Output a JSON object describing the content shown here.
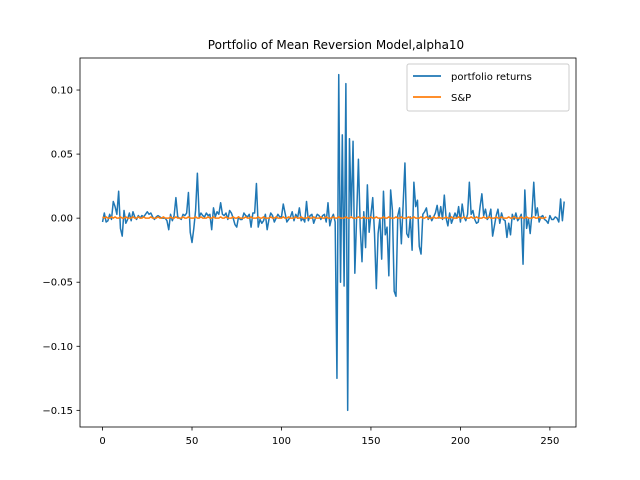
{
  "chart_data": {
    "type": "line",
    "title": "Portfolio of Mean Reversion Model,alpha10",
    "xlabel": "",
    "ylabel": "",
    "xlim": [
      -12.6,
      264.6
    ],
    "ylim": [
      -0.163,
      0.125
    ],
    "xticks": [
      0,
      50,
      100,
      150,
      200,
      250
    ],
    "yticks": [
      0.1,
      0.05,
      0.0,
      -0.05,
      -0.1,
      -0.15
    ],
    "ytick_labels": [
      "0.10",
      "0.05",
      "0.00",
      "−0.05",
      "−0.10",
      "−0.15"
    ],
    "grid": false,
    "legend_location": "upper right",
    "series": [
      {
        "name": "portfolio returns",
        "color": "#1f77b4",
        "x_start": 0,
        "x_step": 1,
        "values": [
          -0.003,
          0.004,
          -0.003,
          -0.002,
          0.003,
          -0.001,
          0.013,
          0.009,
          0.003,
          0.021,
          -0.008,
          -0.014,
          0.006,
          -0.004,
          -0.001,
          0.004,
          -0.002,
          0.005,
          0.001,
          -0.001,
          0.002,
          0.0,
          0.002,
          0.001,
          0.003,
          0.005,
          0.003,
          0.004,
          0.001,
          -0.001,
          0.001,
          0.002,
          0.001,
          0.0,
          0.0,
          0.0,
          -0.002,
          -0.009,
          0.003,
          -0.002,
          0.002,
          0.016,
          0.001,
          0.0,
          -0.001,
          0.003,
          0.002,
          0.004,
          0.02,
          -0.011,
          -0.019,
          -0.008,
          0.006,
          0.035,
          0.001,
          0.004,
          0.002,
          0.001,
          0.004,
          0.002,
          0.003,
          -0.009,
          0.008,
          0.001,
          0.005,
          0.003,
          0.012,
          0.003,
          0.002,
          0.004,
          -0.001,
          0.006,
          0.004,
          0.0,
          -0.005,
          -0.007,
          0.001,
          -0.001,
          -0.001,
          0.004,
          0.002,
          0.001,
          0.003,
          -0.007,
          0.004,
          0.004,
          0.027,
          -0.007,
          -0.001,
          -0.004,
          -0.002,
          0.003,
          -0.009,
          -0.001,
          0.004,
          0.002,
          -0.003,
          0.0,
          0.003,
          0.001,
          0.001,
          0.011,
          0.004,
          -0.003,
          -0.001,
          0.001,
          0.005,
          -0.002,
          0.003,
          0.0,
          0.008,
          -0.002,
          0.0,
          -0.003,
          0.013,
          -0.002,
          0.002,
          0.003,
          -0.004,
          0.0,
          0.003,
          0.002,
          -0.001,
          0.002,
          0.003,
          -0.003,
          0.012,
          -0.006,
          0.0,
          0.003,
          -0.003,
          -0.125,
          0.112,
          -0.05,
          0.065,
          -0.053,
          0.105,
          -0.15,
          0.062,
          0.002,
          0.06,
          -0.043,
          0.001,
          0.046,
          -0.007,
          -0.034,
          0.005,
          -0.023,
          0.026,
          -0.011,
          0.003,
          0.016,
          -0.012,
          -0.055,
          -0.012,
          0.0,
          -0.032,
          0.021,
          -0.013,
          -0.007,
          -0.045,
          0.022,
          0.006,
          -0.057,
          -0.061,
          0.002,
          0.008,
          -0.02,
          0.011,
          0.043,
          -0.012,
          -0.015,
          0.001,
          -0.025,
          0.028,
          0.009,
          0.014,
          -0.022,
          -0.028,
          0.003,
          0.005,
          0.008,
          -0.001,
          0.002,
          -0.002,
          0.001,
          0.004,
          0.01,
          0.0,
          0.009,
          -0.001,
          0.018,
          0.0,
          -0.006,
          0.004,
          -0.004,
          0.0,
          0.004,
          0.0,
          0.009,
          -0.003,
          0.011,
          0.001,
          -0.002,
          0.003,
          0.028,
          0.003,
          0.006,
          -0.001,
          -0.004,
          -0.003,
          0.009,
          0.019,
          0.002,
          0.007,
          -0.001,
          0.001,
          0.007,
          -0.014,
          -0.006,
          0.002,
          0.007,
          -0.004,
          0.004,
          -0.001,
          -0.002,
          -0.015,
          -0.004,
          -0.013,
          0.003,
          -0.001,
          0.004,
          -0.002,
          0.0,
          0.003,
          -0.036,
          0.022,
          -0.008,
          0.0,
          -0.012,
          0.004,
          0.028,
          0.002,
          0.008,
          -0.003,
          0.001,
          0.002,
          -0.001,
          -0.002,
          -0.004,
          0.002,
          -0.001,
          -0.001,
          0.001,
          0.0,
          -0.003,
          0.015,
          -0.002,
          0.013
        ]
      },
      {
        "name": "S&P",
        "color": "#ff7f0e",
        "x_start": 0,
        "x_step": 1,
        "values": [
          0.001,
          0.0,
          0.001,
          0.0,
          0.0,
          0.001,
          0.0,
          0.001,
          0.0,
          0.0,
          0.001,
          0.0,
          0.0,
          0.001,
          0.0,
          0.0,
          0.0,
          0.001,
          0.0,
          0.0,
          0.001,
          0.0,
          0.0,
          0.001,
          0.0,
          0.0,
          0.0,
          0.001,
          0.0,
          0.0,
          0.0,
          0.001,
          0.0,
          0.0,
          0.001,
          0.0,
          0.0,
          0.0,
          0.001,
          0.0,
          0.0,
          0.001,
          0.0,
          0.0,
          0.0,
          0.001,
          0.0,
          0.0,
          0.001,
          0.0,
          0.0,
          0.0,
          0.001,
          0.0,
          0.0,
          0.001,
          0.0,
          0.0,
          0.0,
          0.001,
          0.0,
          0.0,
          0.001,
          0.0,
          0.0,
          0.0,
          0.001,
          0.0,
          0.0,
          0.001,
          0.0,
          0.0,
          0.0,
          0.001,
          0.0,
          0.0,
          0.001,
          0.0,
          0.0,
          0.0,
          0.001,
          0.0,
          0.0,
          0.001,
          0.0,
          0.0,
          0.0,
          0.001,
          0.0,
          0.0,
          0.001,
          0.0,
          0.0,
          0.0,
          0.001,
          0.0,
          0.0,
          0.001,
          0.0,
          0.0,
          0.0,
          0.001,
          0.0,
          0.0,
          0.001,
          0.0,
          0.0,
          0.0,
          0.001,
          0.0,
          0.0,
          0.001,
          0.0,
          0.0,
          0.0,
          0.001,
          0.0,
          0.0,
          0.001,
          0.0,
          0.0,
          0.0,
          0.001,
          0.0,
          0.0,
          0.001,
          0.0,
          0.0,
          0.0,
          0.001,
          0.0,
          0.0,
          0.001,
          0.0,
          0.0,
          0.0,
          0.001,
          0.0,
          0.0,
          0.001,
          0.0,
          0.0,
          0.0,
          0.001,
          0.0,
          0.0,
          0.001,
          0.0,
          0.0,
          0.0,
          0.001,
          0.0,
          0.0,
          0.001,
          0.0,
          0.0,
          0.0,
          0.001,
          0.0,
          0.0,
          0.001,
          0.0,
          0.0,
          0.0,
          0.001,
          0.0,
          0.0,
          0.001,
          0.0,
          0.0,
          0.0,
          0.001,
          0.0,
          0.0,
          0.001,
          0.0,
          0.0,
          0.0,
          0.001,
          0.0,
          0.0,
          0.001,
          0.0,
          0.0,
          0.0,
          0.001,
          0.0,
          0.0,
          0.001,
          0.0,
          0.0,
          0.0,
          0.001,
          0.0,
          0.0,
          0.001,
          0.0,
          0.0,
          0.0,
          0.001,
          0.0,
          0.0,
          0.001,
          0.0,
          0.0,
          0.0,
          0.001,
          0.0,
          0.0,
          0.001,
          0.0,
          0.0,
          0.0,
          0.001,
          0.0,
          0.0,
          0.001,
          0.0,
          0.0,
          0.0,
          0.001,
          0.0,
          0.0,
          0.001,
          0.0,
          0.0,
          0.0,
          0.001,
          0.0,
          0.0,
          0.001,
          0.0,
          0.0,
          0.0,
          0.001,
          0.0,
          0.0,
          0.001,
          0.0,
          0.0,
          0.0,
          0.001,
          0.0,
          0.0,
          0.001,
          0.0,
          0.0,
          0.0,
          0.001
        ]
      }
    ]
  }
}
